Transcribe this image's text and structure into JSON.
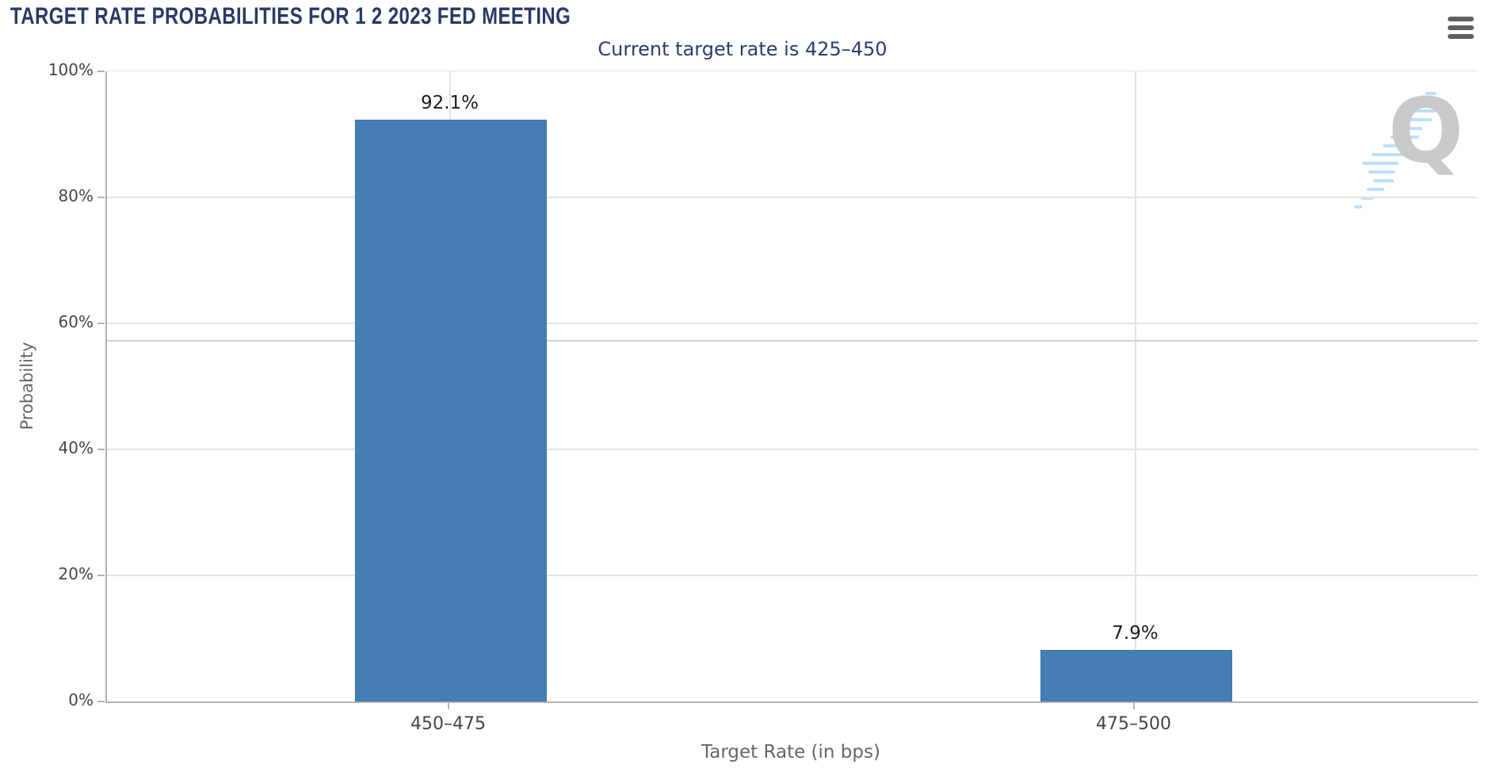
{
  "header": {
    "title": "TARGET RATE PROBABILITIES FOR 1 2 2023 FED MEETING",
    "menu_icon": "hamburger-icon"
  },
  "chart_data": {
    "type": "bar",
    "title": "Current target rate is 425–450",
    "categories": [
      "450–475",
      "475–500"
    ],
    "values": [
      92.1,
      7.9
    ],
    "value_labels": [
      "92.1%",
      "7.9%"
    ],
    "xlabel": "Target Rate (in bps)",
    "ylabel": "Probability",
    "ylim": [
      0,
      100
    ],
    "yticks": [
      0,
      20,
      40,
      60,
      80,
      100
    ],
    "ytick_labels": [
      "0%",
      "20%",
      "40%",
      "60%",
      "80%",
      "100%"
    ],
    "reference_line_y": 57.2,
    "grid": true,
    "legend_position": "none",
    "bar_color": "#447EB4"
  },
  "watermark": {
    "letter": "Q"
  },
  "colors": {
    "title_text": "#293A66",
    "subtitle_text": "#2B3E6E",
    "bar_fill": "#447EB4",
    "gridline": "#E4E4E4",
    "reference_line": "#D2D2D2",
    "axis_line": "#B3B3B3",
    "axis_label_text": "#454545",
    "axis_title_text": "#666666",
    "menu_icon": "#5F5F5F",
    "watermark_q": "#C9C9C9",
    "watermark_dashes": "#BCE0F8"
  }
}
